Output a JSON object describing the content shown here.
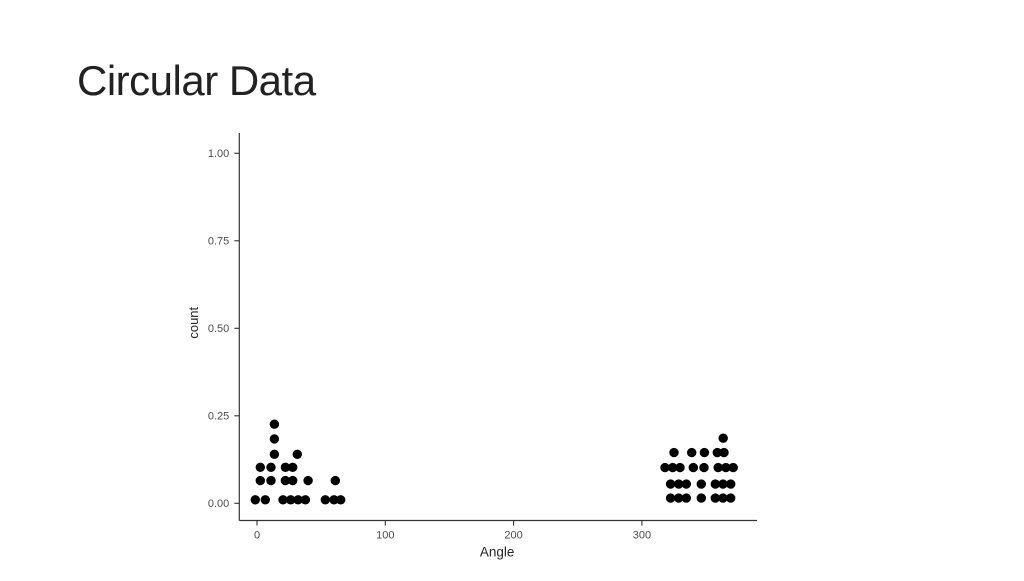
{
  "slide": {
    "title": "Circular Data"
  },
  "chart_data": {
    "type": "scatter",
    "title": "",
    "xlabel": "Angle",
    "ylabel": "count",
    "xlim": [
      -14,
      390
    ],
    "ylim": [
      -0.05,
      1.06
    ],
    "x_ticks": [
      0,
      100,
      200,
      300
    ],
    "x_tick_labels": [
      "0",
      "100",
      "200",
      "300"
    ],
    "y_ticks": [
      0,
      0.25,
      0.5,
      0.75,
      1
    ],
    "y_tick_labels": [
      "0.00",
      "0.25",
      "0.50",
      "0.75",
      "1.00"
    ],
    "grid": false,
    "legend": false,
    "point_color": "#000000",
    "axis_line_color": "#333333",
    "tick_label_color": "#4d4d4d",
    "axis_title_color": "#262626",
    "points": [
      [
        13.6,
        0.226
      ],
      [
        13.6,
        0.184
      ],
      [
        13.6,
        0.14
      ],
      [
        31.4,
        0.14
      ],
      [
        2.6,
        0.103
      ],
      [
        10.9,
        0.103
      ],
      [
        22.1,
        0.103
      ],
      [
        27.8,
        0.103
      ],
      [
        2.6,
        0.065
      ],
      [
        10.9,
        0.065
      ],
      [
        22.1,
        0.065
      ],
      [
        27.8,
        0.065
      ],
      [
        39.8,
        0.065
      ],
      [
        61.0,
        0.065
      ],
      [
        -1.3,
        0.01
      ],
      [
        6.5,
        0.01
      ],
      [
        20.3,
        0.01
      ],
      [
        26.3,
        0.01
      ],
      [
        32.0,
        0.01
      ],
      [
        37.7,
        0.01
      ],
      [
        53.2,
        0.01
      ],
      [
        60.0,
        0.01
      ],
      [
        65.2,
        0.01
      ],
      [
        363.4,
        0.186
      ],
      [
        325.0,
        0.145
      ],
      [
        338.8,
        0.145
      ],
      [
        348.7,
        0.145
      ],
      [
        358.8,
        0.145
      ],
      [
        364.0,
        0.145
      ],
      [
        318.0,
        0.102
      ],
      [
        324.0,
        0.102
      ],
      [
        329.7,
        0.102
      ],
      [
        340.1,
        0.102
      ],
      [
        348.4,
        0.102
      ],
      [
        359.5,
        0.102
      ],
      [
        365.5,
        0.102
      ],
      [
        371.2,
        0.102
      ],
      [
        322.4,
        0.055
      ],
      [
        328.7,
        0.055
      ],
      [
        334.6,
        0.055
      ],
      [
        346.3,
        0.055
      ],
      [
        357.2,
        0.055
      ],
      [
        363.2,
        0.055
      ],
      [
        369.2,
        0.055
      ],
      [
        322.4,
        0.015
      ],
      [
        328.7,
        0.015
      ],
      [
        334.6,
        0.015
      ],
      [
        346.3,
        0.015
      ],
      [
        357.2,
        0.015
      ],
      [
        363.2,
        0.015
      ],
      [
        369.2,
        0.015
      ]
    ]
  }
}
